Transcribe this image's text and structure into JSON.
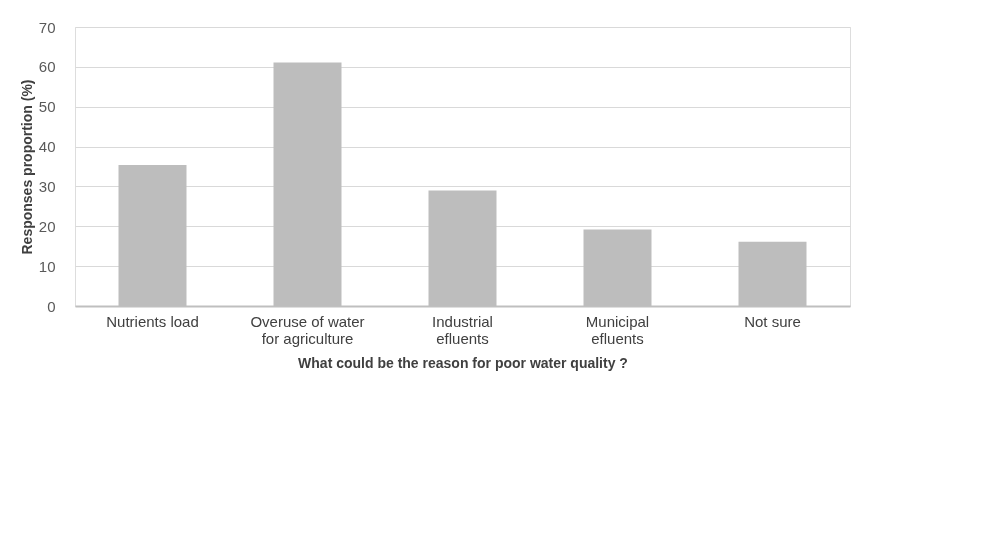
{
  "chart_data": {
    "type": "bar",
    "xlabel": "What could be the reason for poor water quality ?",
    "ylabel": "Responses proportion (%)",
    "categories": [
      "Nutrients load",
      "Overuse of water\nfor agriculture",
      "Industrial\nefluents",
      "Municipal\nefluents",
      "Not sure"
    ],
    "values": [
      35.4,
      61.1,
      29.0,
      19.2,
      16.1
    ],
    "color": "#bdbdbd",
    "ylim": [
      0,
      70
    ],
    "yticks": [
      0,
      10,
      20,
      30,
      40,
      50,
      60,
      70
    ],
    "grid": "y"
  }
}
